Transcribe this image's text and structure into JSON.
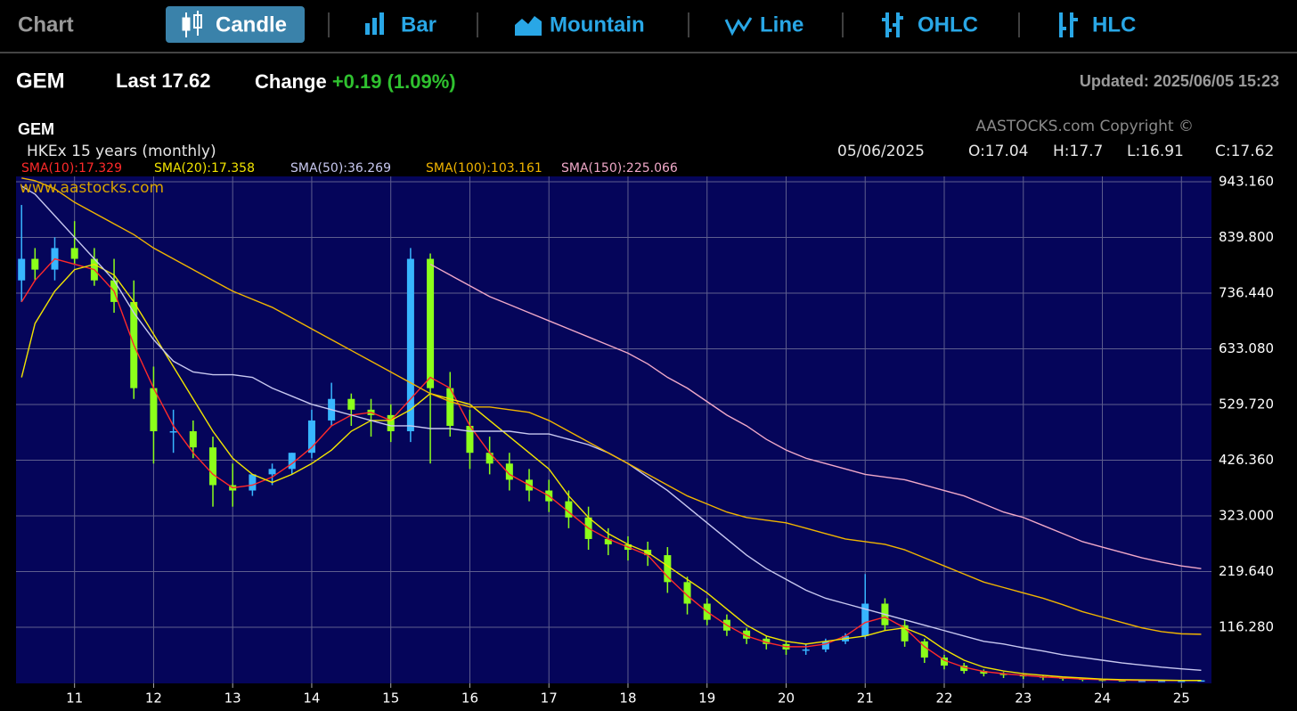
{
  "toolbar": {
    "title": "Chart",
    "tabs": [
      "Candle",
      "Bar",
      "Mountain",
      "Line",
      "OHLC",
      "HLC"
    ]
  },
  "quote": {
    "symbol": "GEM",
    "last_label": "Last",
    "last": 17.62,
    "change_label": "Change",
    "change": "+0.19 (1.09%)",
    "updated": "Updated: 2025/06/05 15:23"
  },
  "chart_data": {
    "type": "candlestick",
    "title": "GEM",
    "subtitle": "HKEx  15 years (monthly)",
    "copyright": "AASTOCKS.com Copyright ©",
    "watermark": "www.aastocks.com",
    "date": "05/06/2025",
    "ohlc_labels": [
      "O:17.04",
      "H:17.7",
      "L:16.91",
      "C:17.62"
    ],
    "x": [
      10.33,
      10.5,
      10.75,
      11,
      11.25,
      11.5,
      11.75,
      12,
      12.25,
      12.5,
      12.75,
      13,
      13.25,
      13.5,
      13.75,
      14,
      14.25,
      14.5,
      14.75,
      15,
      15.25,
      15.5,
      15.75,
      16,
      16.25,
      16.5,
      16.75,
      17,
      17.25,
      17.5,
      17.75,
      18,
      18.25,
      18.5,
      18.75,
      19,
      19.25,
      19.5,
      19.75,
      20,
      20.25,
      20.5,
      20.75,
      21,
      21.25,
      21.5,
      21.75,
      22,
      22.25,
      22.5,
      22.75,
      23,
      23.25,
      23.5,
      23.75,
      24,
      24.25,
      24.5,
      24.75,
      25,
      25.25
    ],
    "open": [
      760,
      800,
      780,
      820,
      800,
      760,
      720,
      560,
      480,
      480,
      450,
      380,
      370,
      400,
      410,
      440,
      500,
      540,
      520,
      510,
      480,
      800,
      560,
      490,
      440,
      420,
      390,
      370,
      350,
      320,
      280,
      270,
      260,
      250,
      200,
      160,
      130,
      110,
      95,
      85,
      75,
      75,
      90,
      100,
      160,
      120,
      90,
      60,
      45,
      35,
      30,
      28,
      25,
      23,
      21,
      19,
      18,
      17,
      17,
      17,
      17.04
    ],
    "high": [
      900,
      820,
      840,
      870,
      820,
      800,
      760,
      600,
      520,
      500,
      470,
      420,
      400,
      420,
      440,
      520,
      570,
      550,
      540,
      530,
      820,
      810,
      590,
      520,
      470,
      440,
      410,
      390,
      370,
      340,
      300,
      285,
      275,
      265,
      210,
      170,
      140,
      115,
      100,
      90,
      85,
      95,
      105,
      215,
      170,
      130,
      95,
      65,
      50,
      38,
      33,
      30,
      27,
      24,
      22,
      20,
      19,
      18,
      18,
      18,
      17.7
    ],
    "low": [
      720,
      760,
      760,
      790,
      750,
      700,
      540,
      420,
      440,
      430,
      340,
      340,
      360,
      380,
      400,
      430,
      490,
      490,
      470,
      460,
      460,
      420,
      470,
      410,
      400,
      370,
      350,
      330,
      300,
      260,
      250,
      240,
      230,
      180,
      140,
      120,
      100,
      85,
      75,
      65,
      65,
      70,
      85,
      95,
      110,
      80,
      50,
      38,
      30,
      25,
      22,
      20,
      18,
      17,
      16,
      16,
      16,
      16,
      16,
      16,
      16.91
    ],
    "close": [
      800,
      780,
      820,
      800,
      760,
      720,
      560,
      480,
      480,
      450,
      380,
      370,
      400,
      410,
      440,
      500,
      540,
      520,
      510,
      480,
      800,
      560,
      490,
      440,
      420,
      390,
      370,
      350,
      320,
      280,
      270,
      260,
      250,
      200,
      160,
      130,
      110,
      95,
      85,
      75,
      75,
      90,
      100,
      160,
      120,
      90,
      60,
      45,
      35,
      30,
      28,
      25,
      23,
      21,
      19,
      18,
      17,
      17,
      17,
      17,
      17.62
    ],
    "up_color": "#38b6ff",
    "down_color": "#8cff1a",
    "series": [
      {
        "name": "SMA(10):17.329",
        "color": "#ff2a2a",
        "values": [
          720,
          760,
          800,
          790,
          780,
          740,
          640,
          560,
          490,
          440,
          400,
          375,
          380,
          395,
          420,
          450,
          490,
          510,
          515,
          500,
          540,
          580,
          560,
          490,
          440,
          400,
          380,
          360,
          330,
          300,
          280,
          265,
          250,
          210,
          175,
          145,
          120,
          100,
          88,
          80,
          80,
          85,
          100,
          125,
          135,
          115,
          80,
          55,
          42,
          34,
          30,
          27,
          24,
          22,
          20,
          19,
          18,
          17.5,
          17.4,
          17.3,
          17.329
        ]
      },
      {
        "name": "SMA(20):17.358",
        "color": "#f2e400",
        "values": [
          580,
          680,
          740,
          780,
          790,
          770,
          720,
          660,
          600,
          540,
          480,
          430,
          400,
          385,
          400,
          420,
          445,
          480,
          500,
          500,
          520,
          550,
          540,
          530,
          500,
          470,
          440,
          410,
          360,
          320,
          290,
          270,
          255,
          230,
          205,
          180,
          150,
          120,
          100,
          90,
          85,
          90,
          95,
          100,
          110,
          115,
          100,
          75,
          55,
          42,
          35,
          30,
          27,
          24,
          22,
          20,
          19,
          18.5,
          18,
          17.5,
          17.358
        ]
      },
      {
        "name": "SMA(50):36.269",
        "color": "#c8c8f0",
        "values": [
          935,
          920,
          880,
          840,
          800,
          760,
          700,
          650,
          610,
          590,
          585,
          585,
          580,
          560,
          545,
          530,
          520,
          510,
          500,
          490,
          490,
          485,
          485,
          480,
          480,
          480,
          475,
          475,
          465,
          455,
          440,
          420,
          395,
          370,
          340,
          310,
          280,
          250,
          225,
          205,
          185,
          170,
          160,
          150,
          140,
          130,
          120,
          110,
          100,
          90,
          85,
          78,
          72,
          65,
          60,
          55,
          50,
          46,
          42,
          39,
          36.269
        ]
      },
      {
        "name": "SMA(100):103.161",
        "color": "#f0b400",
        "values": [
          950,
          945,
          930,
          905,
          885,
          865,
          845,
          820,
          800,
          780,
          760,
          740,
          725,
          710,
          690,
          670,
          650,
          630,
          610,
          590,
          570,
          550,
          535,
          525,
          525,
          520,
          515,
          500,
          480,
          460,
          440,
          420,
          400,
          380,
          360,
          345,
          330,
          320,
          315,
          310,
          300,
          290,
          280,
          275,
          270,
          260,
          245,
          230,
          215,
          200,
          190,
          180,
          170,
          158,
          145,
          135,
          125,
          115,
          108,
          104,
          103.161
        ]
      },
      {
        "name": "SMA(150):225.066",
        "color": "#f0a8c8",
        "values": [
          null,
          null,
          null,
          null,
          null,
          null,
          null,
          null,
          null,
          null,
          null,
          null,
          null,
          null,
          null,
          null,
          null,
          null,
          null,
          null,
          null,
          790,
          770,
          750,
          730,
          715,
          700,
          685,
          670,
          655,
          640,
          625,
          605,
          580,
          560,
          535,
          510,
          490,
          465,
          445,
          430,
          420,
          410,
          400,
          395,
          390,
          380,
          370,
          360,
          345,
          330,
          320,
          305,
          290,
          275,
          265,
          255,
          245,
          237,
          230,
          225.066
        ]
      }
    ],
    "xlim": [
      10.26,
      25.38
    ],
    "xticks": [
      11,
      12,
      13,
      14,
      15,
      16,
      17,
      18,
      19,
      20,
      21,
      22,
      23,
      24,
      25
    ],
    "ylim": [
      12,
      953
    ],
    "yticks": [
      {
        "value": 116.28,
        "label": "116.280"
      },
      {
        "value": 219.64,
        "label": "219.640"
      },
      {
        "value": 323,
        "label": "323.000"
      },
      {
        "value": 426.36,
        "label": "426.360"
      },
      {
        "value": 529.72,
        "label": "529.720"
      },
      {
        "value": 633.08,
        "label": "633.080"
      },
      {
        "value": 736.44,
        "label": "736.440"
      },
      {
        "value": 839.8,
        "label": "839.800"
      },
      {
        "value": 943.16,
        "label": "943.160"
      }
    ],
    "grid": true
  }
}
